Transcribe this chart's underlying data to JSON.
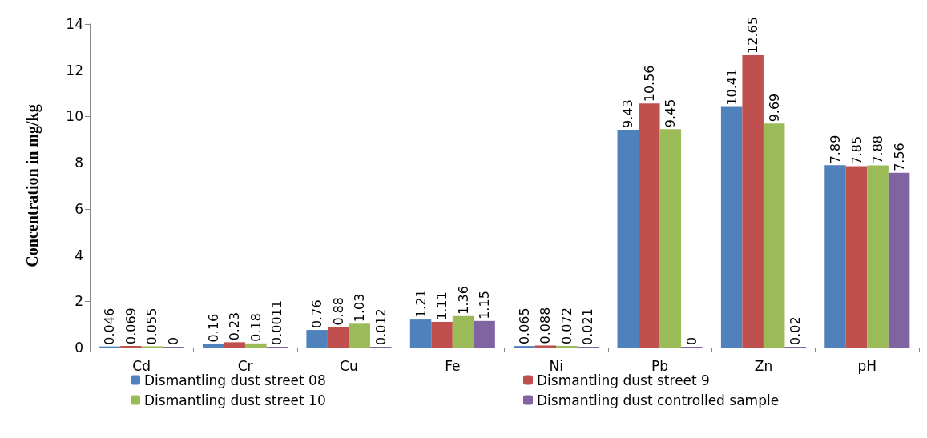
{
  "chart_data": {
    "type": "bar",
    "ylabel": "Concentration in mg/kg",
    "categories": [
      "Cd",
      "Cr",
      "Cu",
      "Fe",
      "Ni",
      "Pb",
      "Zn",
      "pH"
    ],
    "series": [
      {
        "name": "Dismantling dust street 08",
        "color": "#4f81bd",
        "values": [
          0.046,
          0.16,
          0.76,
          1.21,
          0.065,
          9.43,
          10.41,
          7.89
        ]
      },
      {
        "name": "Dismantling dust street 9",
        "color": "#c0504d",
        "values": [
          0.069,
          0.23,
          0.88,
          1.11,
          0.088,
          10.56,
          12.65,
          7.85
        ]
      },
      {
        "name": "Dismantling dust street 10",
        "color": "#9bbb59",
        "values": [
          0.055,
          0.18,
          1.03,
          1.36,
          0.072,
          9.45,
          9.69,
          7.88
        ]
      },
      {
        "name": "Dismantling dust controlled sample",
        "color": "#8064a2",
        "values": [
          0,
          0.0011,
          0.012,
          1.15,
          0.021,
          0,
          0.02,
          7.56
        ]
      }
    ],
    "ylim": [
      0,
      14
    ],
    "yticks": [
      0,
      2,
      4,
      6,
      8,
      10,
      12,
      14
    ],
    "grid": false,
    "legend": "bottom",
    "data_labels": true
  }
}
